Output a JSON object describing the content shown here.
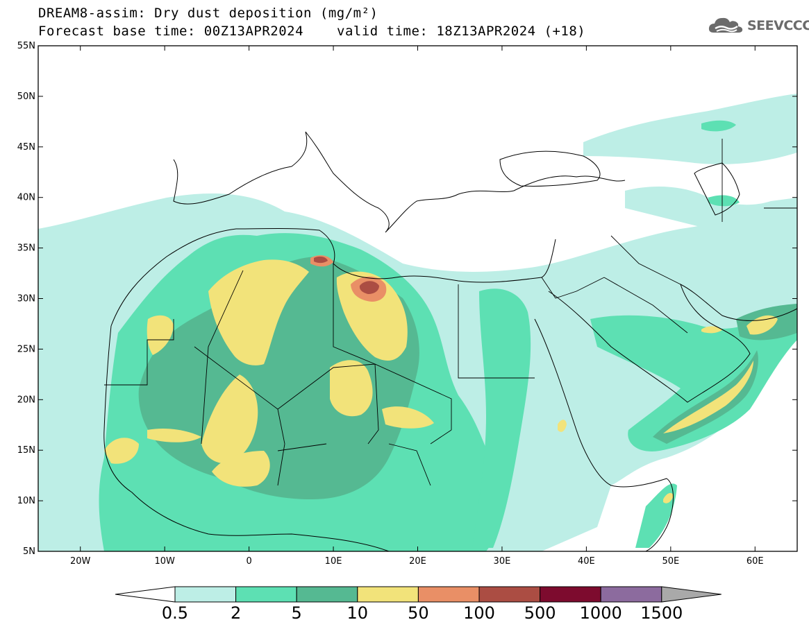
{
  "header": {
    "title_line1": "DREAM8-assim: Dry dust deposition (mg/m²)",
    "base_time": "Forecast base time: 00Z13APR2024",
    "valid_time": "valid time: 18Z13APR2024 (+18)"
  },
  "logo": {
    "text": "SEEVCCC",
    "icon": "cloud-icon"
  },
  "map": {
    "lon_range": [
      -25,
      65
    ],
    "lat_range": [
      5,
      55
    ],
    "lat_ticks": [
      {
        "value": 55,
        "label": "55N"
      },
      {
        "value": 50,
        "label": "50N"
      },
      {
        "value": 45,
        "label": "45N"
      },
      {
        "value": 40,
        "label": "40N"
      },
      {
        "value": 35,
        "label": "35N"
      },
      {
        "value": 30,
        "label": "30N"
      },
      {
        "value": 25,
        "label": "25N"
      },
      {
        "value": 20,
        "label": "20N"
      },
      {
        "value": 15,
        "label": "15N"
      },
      {
        "value": 10,
        "label": "10N"
      },
      {
        "value": 5,
        "label": "5N"
      }
    ],
    "lon_ticks": [
      {
        "value": -20,
        "label": "20W"
      },
      {
        "value": -10,
        "label": "10W"
      },
      {
        "value": 0,
        "label": "0"
      },
      {
        "value": 10,
        "label": "10E"
      },
      {
        "value": 20,
        "label": "20E"
      },
      {
        "value": 30,
        "label": "30E"
      },
      {
        "value": 40,
        "label": "40E"
      },
      {
        "value": 50,
        "label": "50E"
      },
      {
        "value": 60,
        "label": "60E"
      }
    ]
  },
  "colorbar": {
    "labels": [
      "0.5",
      "2",
      "5",
      "10",
      "50",
      "100",
      "500",
      "1000",
      "1500"
    ],
    "colors": [
      "#ffffff",
      "#bdeee6",
      "#5de0b3",
      "#55b992",
      "#f2e37a",
      "#e98f66",
      "#ab4d43",
      "#7d0b2e",
      "#8c6b9e",
      "#a9a9a9"
    ]
  }
}
